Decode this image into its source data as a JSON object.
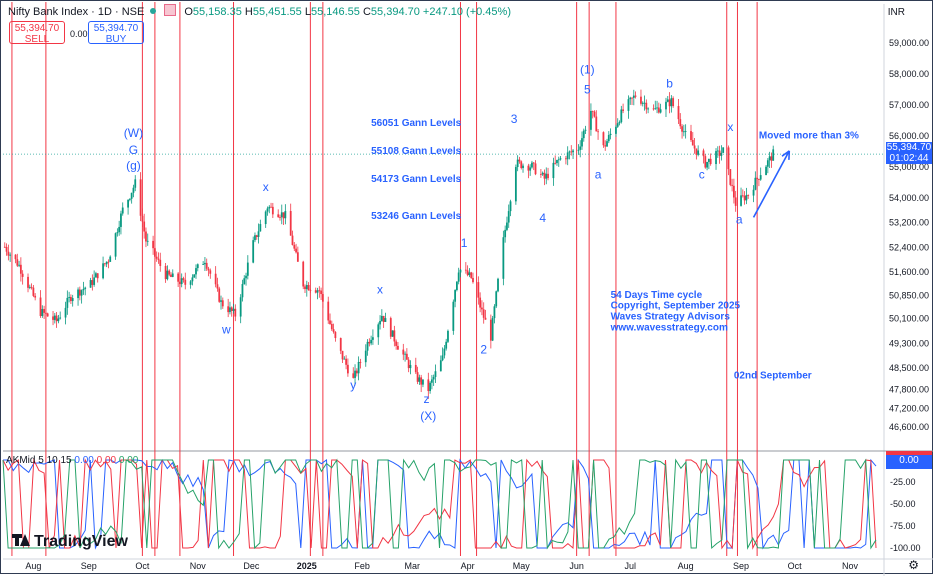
{
  "header": {
    "symbol": "Nifty Bank Index · 1D · NSE",
    "open_label": "O",
    "open": "55,158.35",
    "high_label": "H",
    "high": "55,451.55",
    "low_label": "L",
    "low": "55,146.55",
    "close_label": "C",
    "close": "55,394.70",
    "change": "+247.10 (+0.45%)"
  },
  "trade": {
    "sell_price": "55,394.70",
    "sell_label": "SELL",
    "spread": "0.00",
    "buy_price": "55,394.70",
    "buy_label": "BUY"
  },
  "currency": "INR",
  "price_tag": {
    "price": "55,394.70",
    "countdown": "01:02:44"
  },
  "indicator": {
    "name": "AKMid 5 10 15",
    "values": [
      "0.00",
      "0.00",
      "0.00"
    ],
    "tag": "0.00",
    "ticks": [
      "-25.00",
      "-50.00",
      "-75.00",
      "-100.00"
    ],
    "colors": {
      "blue": "#2962ff",
      "red": "#f23645",
      "green": "#26a269"
    }
  },
  "branding": "TradingView",
  "colors": {
    "up": "#089981",
    "down": "#f23645",
    "accent": "#2962ff",
    "cycle_line": "#f23645"
  },
  "icons": {
    "settings": "gear-icon"
  },
  "chart_data": {
    "type": "candlestick",
    "ylim": [
      45900,
      59600
    ],
    "y_ticks": [
      59000,
      58000,
      57000,
      56000,
      55000,
      54000,
      53200,
      52400,
      51600,
      50850,
      50100,
      49300,
      48500,
      47800,
      47200,
      46600
    ],
    "y_tick_labels": [
      "59,000.00",
      "58,000.00",
      "57,000.00",
      "56,000.00",
      "55,000.00",
      "54,000.00",
      "53,200.00",
      "52,400.00",
      "51,600.00",
      "50,850.00",
      "50,100.00",
      "49,300.00",
      "48,500.00",
      "47,800.00",
      "47,200.00",
      "46,600.00"
    ],
    "x_labels": [
      "Aug",
      "Sep",
      "Oct",
      "Nov",
      "Dec",
      "2025",
      "Feb",
      "Mar",
      "Apr",
      "May",
      "Jun",
      "Jul",
      "Aug",
      "Sep",
      "Oct",
      "Nov"
    ],
    "x_label_dates": [
      "2024-08-01",
      "2024-09-01",
      "2024-10-01",
      "2024-11-01",
      "2024-12-01",
      "2025-01-01",
      "2025-02-01",
      "2025-03-01",
      "2025-04-01",
      "2025-05-01",
      "2025-06-01",
      "2025-07-01",
      "2025-08-01",
      "2025-09-01",
      "2025-10-01",
      "2025-11-01"
    ],
    "x_range": [
      "2024-07-15",
      "2025-11-20"
    ],
    "last_price": 55394.7,
    "path_points": [
      [
        "2024-07-16",
        52400
      ],
      [
        "2024-07-24",
        51800
      ],
      [
        "2024-08-05",
        50300
      ],
      [
        "2024-08-14",
        50000
      ],
      [
        "2024-08-22",
        50800
      ],
      [
        "2024-09-02",
        51200
      ],
      [
        "2024-09-12",
        52000
      ],
      [
        "2024-09-20",
        53600
      ],
      [
        "2024-09-27",
        54450
      ],
      [
        "2024-10-03",
        52600
      ],
      [
        "2024-10-14",
        51500
      ],
      [
        "2024-10-25",
        51200
      ],
      [
        "2024-11-05",
        52000
      ],
      [
        "2024-11-14",
        50600
      ],
      [
        "2024-11-22",
        50200
      ],
      [
        "2024-12-02",
        52500
      ],
      [
        "2024-12-10",
        53700
      ],
      [
        "2024-12-20",
        53400
      ],
      [
        "2024-12-30",
        51200
      ],
      [
        "2025-01-08",
        51000
      ],
      [
        "2025-01-18",
        49200
      ],
      [
        "2025-01-27",
        48100
      ],
      [
        "2025-02-04",
        49300
      ],
      [
        "2025-02-12",
        50200
      ],
      [
        "2025-02-22",
        49100
      ],
      [
        "2025-03-03",
        48200
      ],
      [
        "2025-03-10",
        47800
      ],
      [
        "2025-03-18",
        48800
      ],
      [
        "2025-03-27",
        51700
      ],
      [
        "2025-04-03",
        51400
      ],
      [
        "2025-04-09",
        50300
      ],
      [
        "2025-04-14",
        49500
      ],
      [
        "2025-04-21",
        52600
      ],
      [
        "2025-04-28",
        55100
      ],
      [
        "2025-05-07",
        55000
      ],
      [
        "2025-05-14",
        54600
      ],
      [
        "2025-05-22",
        55200
      ],
      [
        "2025-06-02",
        55600
      ],
      [
        "2025-06-09",
        56800
      ],
      [
        "2025-06-16",
        55600
      ],
      [
        "2025-06-27",
        56800
      ],
      [
        "2025-07-04",
        57300
      ],
      [
        "2025-07-14",
        56800
      ],
      [
        "2025-07-24",
        57100
      ],
      [
        "2025-08-01",
        56000
      ],
      [
        "2025-08-12",
        55100
      ],
      [
        "2025-08-22",
        55500
      ],
      [
        "2025-08-29",
        53800
      ],
      [
        "2025-09-05",
        54100
      ],
      [
        "2025-09-12",
        54800
      ],
      [
        "2025-09-19",
        55394.7
      ]
    ],
    "annotations": [
      {
        "label": "(W)",
        "date": "2024-09-26",
        "price": 55950
      },
      {
        "label": "G",
        "date": "2024-09-26",
        "price": 55400
      },
      {
        "label": "(g)",
        "date": "2024-09-26",
        "price": 54900
      },
      {
        "label": "x",
        "date": "2024-12-09",
        "price": 54200
      },
      {
        "label": "w",
        "date": "2024-11-17",
        "price": 49600
      },
      {
        "label": "y",
        "date": "2025-01-27",
        "price": 47800
      },
      {
        "label": "x",
        "date": "2025-02-11",
        "price": 50900
      },
      {
        "label": "z",
        "date": "2025-03-09",
        "price": 47350
      },
      {
        "label": "(X)",
        "date": "2025-03-10",
        "price": 46800
      },
      {
        "label": "1",
        "date": "2025-03-30",
        "price": 52400
      },
      {
        "label": "2",
        "date": "2025-04-10",
        "price": 48950
      },
      {
        "label": "3",
        "date": "2025-04-27",
        "price": 56400
      },
      {
        "label": "4",
        "date": "2025-05-13",
        "price": 53200
      },
      {
        "label": "(1)",
        "date": "2025-06-07",
        "price": 58000
      },
      {
        "label": "5",
        "date": "2025-06-07",
        "price": 57350
      },
      {
        "label": "a",
        "date": "2025-06-13",
        "price": 54600
      },
      {
        "label": "b",
        "date": "2025-07-23",
        "price": 57550
      },
      {
        "label": "c",
        "date": "2025-08-10",
        "price": 54600
      },
      {
        "label": "x",
        "date": "2025-08-26",
        "price": 56150
      },
      {
        "label": "a",
        "date": "2025-08-31",
        "price": 53150
      },
      {
        "label": "56051 Gann Levels",
        "date": "2025-02-06",
        "price": 56300
      },
      {
        "label": "55108 Gann Levels",
        "date": "2025-02-06",
        "price": 55400
      },
      {
        "label": "54173 Gann Levels",
        "date": "2025-02-06",
        "price": 54500
      },
      {
        "label": "53246 Gann Levels",
        "date": "2025-02-06",
        "price": 53300
      },
      {
        "label": "Moved more than 3%",
        "date": "2025-09-11",
        "price": 55900
      },
      {
        "label": "54 Days Time cycle",
        "date": "2025-06-20",
        "price": 50750
      },
      {
        "label": "Copyright, September 2025",
        "date": "2025-06-20",
        "price": 50400
      },
      {
        "label": "Waves Strategy Advisors",
        "date": "2025-06-20",
        "price": 50050
      },
      {
        "label": "www.wavesstrategy.com",
        "date": "2025-06-20",
        "price": 49700
      },
      {
        "label": "02nd September",
        "date": "2025-08-28",
        "price": 48150
      }
    ],
    "cycle_lines": [
      "2024-07-20",
      "2024-08-08",
      "2024-10-01",
      "2024-10-08",
      "2024-10-22",
      "2024-11-21",
      "2025-01-03",
      "2025-01-10",
      "2025-03-28",
      "2025-04-06",
      "2025-06-01",
      "2025-06-08",
      "2025-06-23",
      "2025-08-24",
      "2025-08-30",
      "2025-09-10"
    ],
    "gann_levels": [
      56051,
      55108,
      54173,
      53246
    ],
    "arrow": {
      "from": [
        "2025-09-08",
        53350
      ],
      "to": [
        "2025-09-28",
        55500
      ]
    }
  }
}
